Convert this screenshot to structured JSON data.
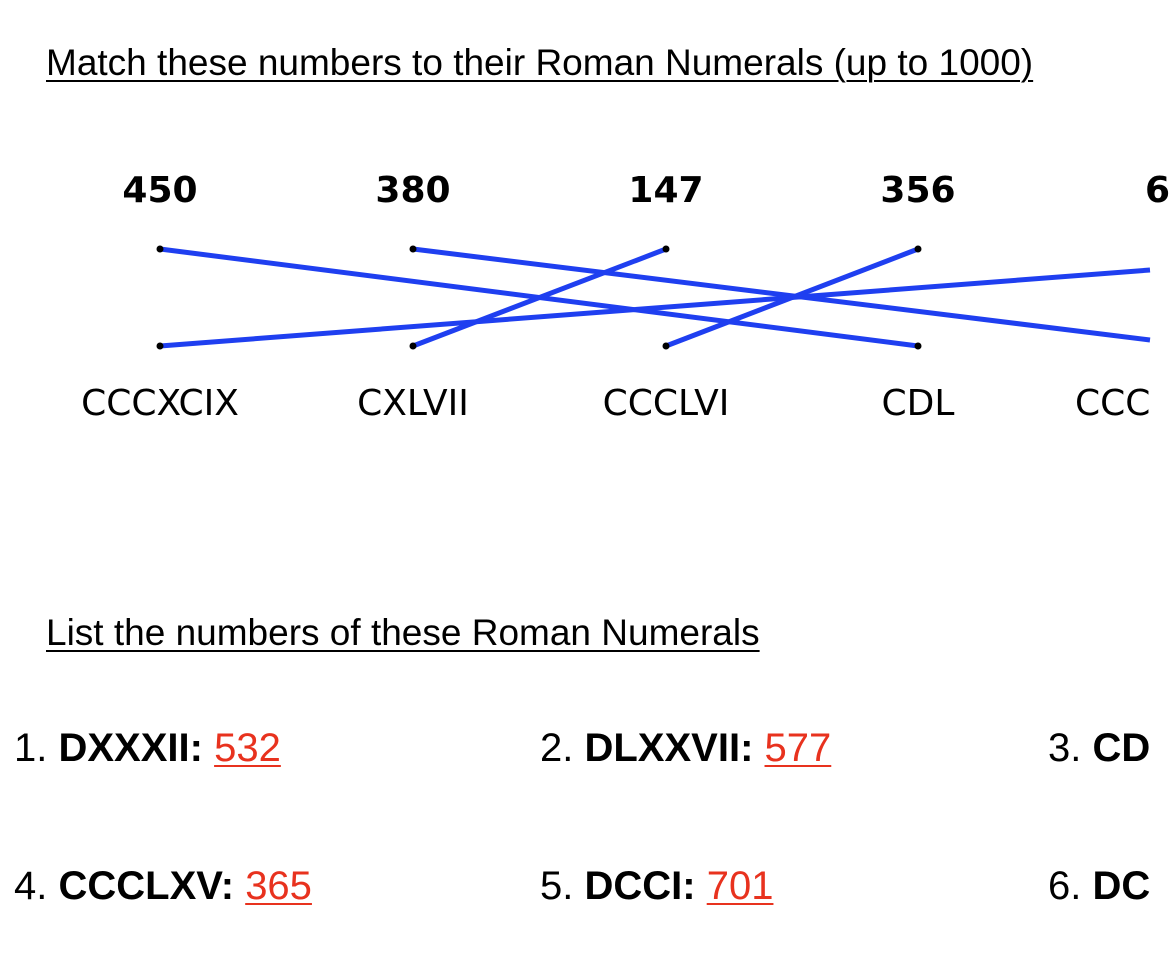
{
  "heading": "Match these numbers to their Roman Numerals (up to 1000)",
  "matching": {
    "numbers": [
      "450",
      "380",
      "147",
      "356",
      "6"
    ],
    "numerals": [
      "CCCXCIX",
      "CXLVII",
      "CCCLVI",
      "CDL",
      "CCC"
    ]
  },
  "list_heading": "List the numbers of these Roman Numerals",
  "items": [
    {
      "index": "1.",
      "numeral": "DXXXII:",
      "answer": "532"
    },
    {
      "index": "2.",
      "numeral": "DLXXVII:",
      "answer": "577"
    },
    {
      "index": "3.",
      "numeral": "CD"
    },
    {
      "index": "4.",
      "numeral": "CCCLXV:",
      "answer": "365"
    },
    {
      "index": "5.",
      "numeral": "DCCI:",
      "answer": "701"
    },
    {
      "index": "6.",
      "numeral": "DC"
    }
  ]
}
